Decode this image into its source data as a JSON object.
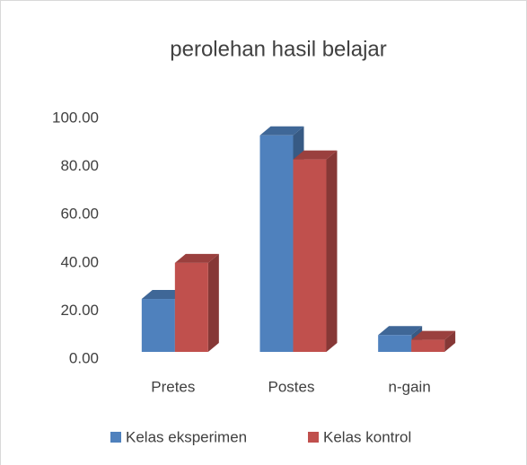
{
  "chart_data": {
    "type": "bar3d",
    "title": "perolehan hasil belajar",
    "categories": [
      "Pretes",
      "Postes",
      "n-gain"
    ],
    "series": [
      {
        "name": "Kelas eksperimen",
        "color": "#4f81bd",
        "values": [
          22,
          90,
          7
        ]
      },
      {
        "name": "Kelas kontrol",
        "color": "#c0504d",
        "values": [
          37,
          80,
          5
        ]
      }
    ],
    "ylim": [
      0,
      100
    ],
    "yticks": [
      {
        "value": 0,
        "label": "0.00"
      },
      {
        "value": 20,
        "label": "20.00"
      },
      {
        "value": 40,
        "label": "40.00"
      },
      {
        "value": 60,
        "label": "60.00"
      },
      {
        "value": 80,
        "label": "80.00"
      },
      {
        "value": 100,
        "label": "100.00"
      }
    ],
    "legend": "bottom"
  }
}
